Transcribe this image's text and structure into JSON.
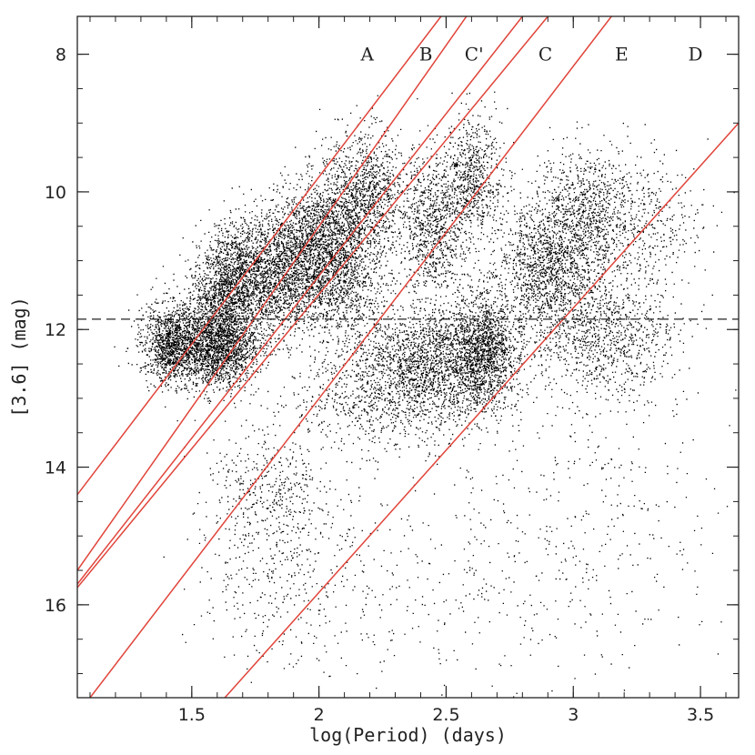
{
  "chart_data": {
    "type": "scatter",
    "xlabel": "log(Period) (days)",
    "ylabel": "[3.6] (mag)",
    "xlim": [
      1.05,
      3.65
    ],
    "ylim": [
      17.35,
      7.45
    ],
    "y_inverted": true,
    "x_ticks": [
      1.5,
      2,
      2.5,
      3,
      3.5
    ],
    "x_tick_labels": [
      "1.5",
      "2",
      "2.5",
      "3",
      "3.5"
    ],
    "y_ticks": [
      8,
      10,
      12,
      14,
      16
    ],
    "y_tick_labels": [
      "8",
      "10",
      "12",
      "14",
      "16"
    ],
    "point_color": "#000000",
    "line_color": "#e0443a",
    "reference_line": {
      "style": "dashed",
      "y": 11.85
    },
    "sequence_labels": [
      {
        "text": "A",
        "x": 2.19,
        "y": 8.0
      },
      {
        "text": "B",
        "x": 2.42,
        "y": 8.0
      },
      {
        "text": "C'",
        "x": 2.61,
        "y": 8.0
      },
      {
        "text": "C",
        "x": 2.89,
        "y": 8.0
      },
      {
        "text": "E",
        "x": 3.19,
        "y": 8.0
      },
      {
        "text": "D",
        "x": 3.48,
        "y": 8.0
      }
    ],
    "boundary_lines": [
      {
        "x1": 1.05,
        "y1": 14.4,
        "x2": 2.48,
        "y2": 7.45
      },
      {
        "x1": 1.05,
        "y1": 15.5,
        "x2": 2.58,
        "y2": 7.45
      },
      {
        "x1": 1.05,
        "y1": 15.7,
        "x2": 2.8,
        "y2": 7.45
      },
      {
        "x1": 1.05,
        "y1": 15.75,
        "x2": 2.9,
        "y2": 7.45
      },
      {
        "x1": 1.1,
        "y1": 17.35,
        "x2": 3.15,
        "y2": 7.45
      },
      {
        "x1": 1.63,
        "y1": 17.35,
        "x2": 3.65,
        "y2": 9.0
      }
    ],
    "clusters": [
      {
        "x": 1.42,
        "y": 12.2,
        "sx": 0.06,
        "sy": 0.28,
        "n": 1200
      },
      {
        "x": 1.6,
        "y": 12.25,
        "sx": 0.08,
        "sy": 0.3,
        "n": 1800
      },
      {
        "x": 1.62,
        "y": 11.6,
        "sx": 0.07,
        "sy": 0.35,
        "n": 900
      },
      {
        "x": 1.68,
        "y": 11.1,
        "sx": 0.07,
        "sy": 0.35,
        "n": 900
      },
      {
        "x": 1.85,
        "y": 11.2,
        "sx": 0.09,
        "sy": 0.45,
        "n": 1500
      },
      {
        "x": 2.0,
        "y": 10.7,
        "sx": 0.09,
        "sy": 0.45,
        "n": 1500
      },
      {
        "x": 2.18,
        "y": 10.0,
        "sx": 0.08,
        "sy": 0.45,
        "n": 1100
      },
      {
        "x": 2.1,
        "y": 11.3,
        "sx": 0.09,
        "sy": 0.45,
        "n": 800
      },
      {
        "x": 2.45,
        "y": 10.5,
        "sx": 0.07,
        "sy": 0.5,
        "n": 900
      },
      {
        "x": 2.6,
        "y": 9.8,
        "sx": 0.06,
        "sy": 0.45,
        "n": 700
      },
      {
        "x": 2.45,
        "y": 12.4,
        "sx": 0.16,
        "sy": 0.35,
        "n": 1800
      },
      {
        "x": 2.65,
        "y": 12.25,
        "sx": 0.06,
        "sy": 0.45,
        "n": 1200
      },
      {
        "x": 2.9,
        "y": 11.1,
        "sx": 0.1,
        "sy": 0.45,
        "n": 1300
      },
      {
        "x": 3.05,
        "y": 10.3,
        "sx": 0.11,
        "sy": 0.45,
        "n": 1000
      },
      {
        "x": 3.12,
        "y": 12.1,
        "sx": 0.14,
        "sy": 0.45,
        "n": 1000
      },
      {
        "x": 3.3,
        "y": 10.5,
        "sx": 0.1,
        "sy": 0.5,
        "n": 300
      },
      {
        "x": 2.3,
        "y": 13.0,
        "sx": 0.2,
        "sy": 0.35,
        "n": 900
      },
      {
        "x": 1.8,
        "y": 14.3,
        "sx": 0.12,
        "sy": 0.5,
        "n": 450
      },
      {
        "x": 1.9,
        "y": 15.7,
        "sx": 0.2,
        "sy": 0.6,
        "n": 350
      },
      {
        "x": 2.6,
        "y": 15.5,
        "sx": 0.4,
        "sy": 0.9,
        "n": 350
      },
      {
        "x": 3.1,
        "y": 14.5,
        "sx": 0.3,
        "sy": 1.0,
        "n": 250
      }
    ]
  }
}
